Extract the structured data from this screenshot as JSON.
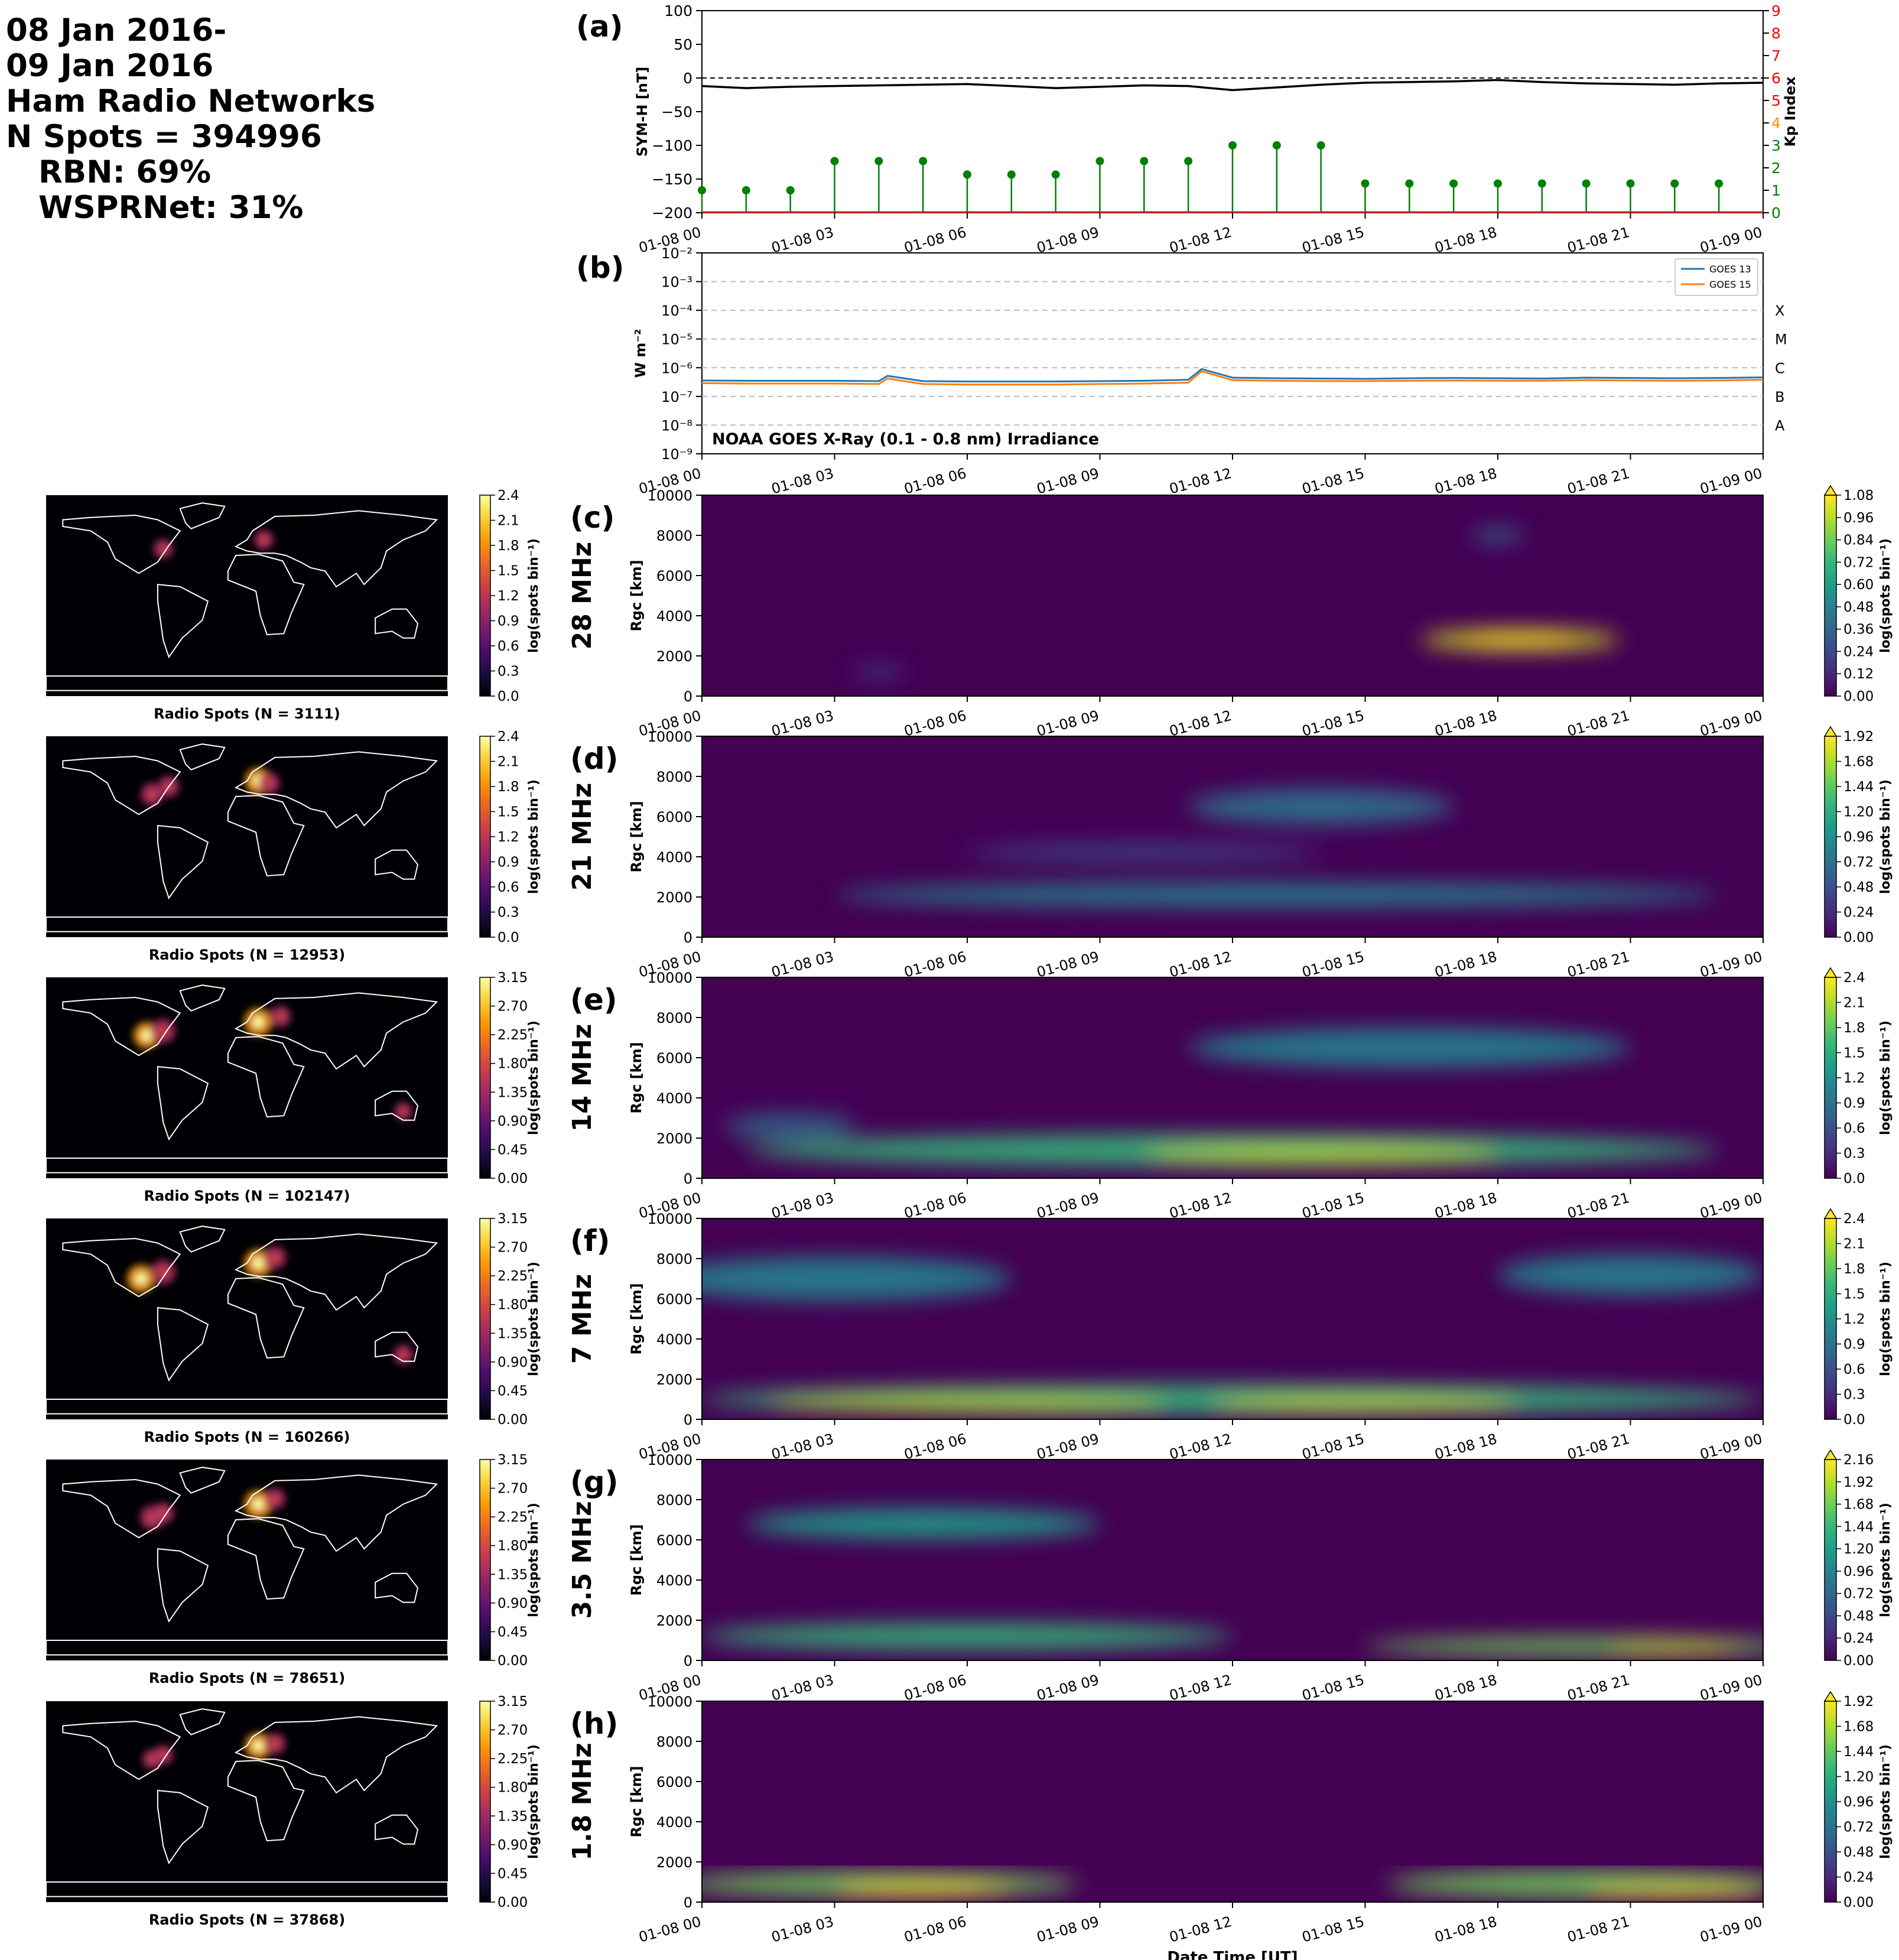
{
  "header": {
    "line1": "08 Jan 2016-",
    "line2": "09 Jan 2016",
    "line3": "Ham Radio Networks",
    "line4": "N Spots = 394996",
    "line5": "RBN: 69%",
    "line6": "WSPRNet: 31%"
  },
  "time_ticks": [
    "01-08 00",
    "01-08 03",
    "01-08 06",
    "01-08 09",
    "01-08 12",
    "01-08 15",
    "01-08 18",
    "01-08 21",
    "01-09 00"
  ],
  "xlabel": "Date Time [UT]",
  "colors": {
    "symh_line": "#000000",
    "kp_stem": "#008000",
    "kp_axis": "#ff0000",
    "goes13": "#1f77b4",
    "goes15": "#ff7f0e"
  },
  "chart_data": [
    {
      "panel": "(a)",
      "type": "line",
      "title": "",
      "ylabel": "SYM-H [nT]",
      "ylim": [
        -200,
        100
      ],
      "yticks": [
        "100",
        "50",
        "0",
        "−50",
        "−100",
        "−150",
        "−200"
      ],
      "reference_line": 0,
      "x_hours": [
        0,
        1,
        2,
        3,
        4,
        5,
        6,
        7,
        8,
        9,
        10,
        11,
        12,
        13,
        14,
        15,
        16,
        17,
        18,
        19,
        20,
        21,
        22,
        23,
        24
      ],
      "series": [
        {
          "values": [
            -12,
            -15,
            -13,
            -12,
            -11,
            -10,
            -9,
            -12,
            -15,
            -13,
            -11,
            -12,
            -18,
            -14,
            -10,
            -7,
            -6,
            -5,
            -3,
            -6,
            -8,
            -9,
            -10,
            -8,
            -7
          ]
        }
      ],
      "secondary": {
        "type": "stem",
        "ylabel": "Kp Index",
        "ylim": [
          0,
          9
        ],
        "yticks": [
          "0",
          "1",
          "2",
          "3",
          "4",
          "5",
          "6",
          "7",
          "8",
          "9"
        ],
        "x_hours": [
          0,
          1,
          2,
          3,
          4,
          5,
          6,
          7,
          8,
          9,
          10,
          11,
          12,
          13,
          14,
          15,
          16,
          17,
          18,
          19,
          20,
          21,
          22,
          23
        ],
        "values": [
          1.0,
          1.0,
          1.0,
          2.3,
          2.3,
          2.3,
          1.7,
          1.7,
          1.7,
          2.3,
          2.3,
          2.3,
          3.0,
          3.0,
          3.0,
          1.3,
          1.3,
          1.3,
          1.3,
          1.3,
          1.3,
          1.3,
          1.3,
          1.3
        ]
      }
    },
    {
      "panel": "(b)",
      "type": "line",
      "title": "NOAA GOES X-Ray (0.1 - 0.8 nm) Irradiance",
      "ylabel": "W m⁻²",
      "yscale": "log",
      "ylim": [
        1e-09,
        0.01
      ],
      "yticks": [
        "10⁻²",
        "10⁻³",
        "10⁻⁴",
        "10⁻⁵",
        "10⁻⁶",
        "10⁻⁷",
        "10⁻⁸",
        "10⁻⁹"
      ],
      "flare_classes": [
        "X",
        "M",
        "C",
        "B",
        "A"
      ],
      "legend": [
        "GOES 13",
        "GOES 15"
      ],
      "x_hours": [
        0,
        1,
        2,
        3,
        4,
        4.2,
        5,
        6,
        7,
        8,
        9,
        10,
        11,
        11.3,
        12,
        13,
        14,
        15,
        16,
        17,
        18,
        19,
        20,
        21,
        22,
        23,
        24
      ],
      "series": [
        {
          "name": "GOES 13",
          "values": [
            3.6e-07,
            3.5e-07,
            3.5e-07,
            3.5e-07,
            3.4e-07,
            5.2e-07,
            3.4e-07,
            3.3e-07,
            3.3e-07,
            3.3e-07,
            3.4e-07,
            3.5e-07,
            3.8e-07,
            9e-07,
            4.5e-07,
            4.3e-07,
            4.2e-07,
            4.1e-07,
            4.3e-07,
            4.4e-07,
            4.3e-07,
            4.2e-07,
            4.5e-07,
            4.4e-07,
            4.3e-07,
            4.4e-07,
            4.6e-07
          ]
        },
        {
          "name": "GOES 15",
          "values": [
            2.9e-07,
            2.8e-07,
            2.8e-07,
            2.8e-07,
            2.7e-07,
            4.2e-07,
            2.7e-07,
            2.6e-07,
            2.6e-07,
            2.6e-07,
            2.7e-07,
            2.8e-07,
            3e-07,
            7.5e-07,
            3.7e-07,
            3.5e-07,
            3.4e-07,
            3.4e-07,
            3.5e-07,
            3.6e-07,
            3.5e-07,
            3.5e-07,
            3.7e-07,
            3.6e-07,
            3.5e-07,
            3.6e-07,
            3.8e-07
          ]
        }
      ]
    },
    {
      "panel": "(c)",
      "type": "heatmap",
      "band": "28 MHz",
      "ylabel": "R_gc [km]",
      "ylim": [
        0,
        10000
      ],
      "yticks": [
        "10000",
        "8000",
        "6000",
        "4000",
        "2000",
        "0"
      ],
      "cbar_label": "log(spots bin⁻¹)",
      "cbar_ticks": [
        "1.08",
        "0.96",
        "0.84",
        "0.72",
        "0.60",
        "0.48",
        "0.36",
        "0.24",
        "0.12",
        "0.00"
      ],
      "cbar_max": 1.08,
      "map_title": "Radio Spots (N = 3111)",
      "map_cbar_ticks": [
        "2.4",
        "2.1",
        "1.8",
        "1.5",
        "1.2",
        "0.9",
        "0.6",
        "0.3",
        "0.0"
      ],
      "map_cbar_max": 2.4
    },
    {
      "panel": "(d)",
      "type": "heatmap",
      "band": "21 MHz",
      "ylabel": "R_gc [km]",
      "ylim": [
        0,
        10000
      ],
      "yticks": [
        "10000",
        "8000",
        "6000",
        "4000",
        "2000",
        "0"
      ],
      "cbar_label": "log(spots bin⁻¹)",
      "cbar_ticks": [
        "1.92",
        "1.68",
        "1.44",
        "1.20",
        "0.96",
        "0.72",
        "0.48",
        "0.24",
        "0.00"
      ],
      "cbar_max": 1.92,
      "map_title": "Radio Spots (N = 12953)",
      "map_cbar_ticks": [
        "2.4",
        "2.1",
        "1.8",
        "1.5",
        "1.2",
        "0.9",
        "0.6",
        "0.3",
        "0.0"
      ],
      "map_cbar_max": 2.4
    },
    {
      "panel": "(e)",
      "type": "heatmap",
      "band": "14 MHz",
      "ylabel": "R_gc [km]",
      "ylim": [
        0,
        10000
      ],
      "yticks": [
        "10000",
        "8000",
        "6000",
        "4000",
        "2000",
        "0"
      ],
      "cbar_label": "log(spots bin⁻¹)",
      "cbar_ticks": [
        "2.4",
        "2.1",
        "1.8",
        "1.5",
        "1.2",
        "0.9",
        "0.6",
        "0.3",
        "0.0"
      ],
      "cbar_max": 2.4,
      "map_title": "Radio Spots (N = 102147)",
      "map_cbar_ticks": [
        "3.15",
        "2.70",
        "2.25",
        "1.80",
        "1.35",
        "0.90",
        "0.45",
        "0.00"
      ],
      "map_cbar_max": 3.15
    },
    {
      "panel": "(f)",
      "type": "heatmap",
      "band": "7 MHz",
      "ylabel": "R_gc [km]",
      "ylim": [
        0,
        10000
      ],
      "yticks": [
        "10000",
        "8000",
        "6000",
        "4000",
        "2000",
        "0"
      ],
      "cbar_label": "log(spots bin⁻¹)",
      "cbar_ticks": [
        "2.4",
        "2.1",
        "1.8",
        "1.5",
        "1.2",
        "0.9",
        "0.6",
        "0.3",
        "0.0"
      ],
      "cbar_max": 2.4,
      "map_title": "Radio Spots (N = 160266)",
      "map_cbar_ticks": [
        "3.15",
        "2.70",
        "2.25",
        "1.80",
        "1.35",
        "0.90",
        "0.45",
        "0.00"
      ],
      "map_cbar_max": 3.15
    },
    {
      "panel": "(g)",
      "type": "heatmap",
      "band": "3.5 MHz",
      "ylabel": "R_gc [km]",
      "ylim": [
        0,
        10000
      ],
      "yticks": [
        "10000",
        "8000",
        "6000",
        "4000",
        "2000",
        "0"
      ],
      "cbar_label": "log(spots bin⁻¹)",
      "cbar_ticks": [
        "2.16",
        "1.92",
        "1.68",
        "1.44",
        "1.20",
        "0.96",
        "0.72",
        "0.48",
        "0.24",
        "0.00"
      ],
      "cbar_max": 2.16,
      "map_title": "Radio Spots (N = 78651)",
      "map_cbar_ticks": [
        "3.15",
        "2.70",
        "2.25",
        "1.80",
        "1.35",
        "0.90",
        "0.45",
        "0.00"
      ],
      "map_cbar_max": 3.15
    },
    {
      "panel": "(h)",
      "type": "heatmap",
      "band": "1.8 MHz",
      "ylabel": "R_gc [km]",
      "ylim": [
        0,
        10000
      ],
      "yticks": [
        "10000",
        "8000",
        "6000",
        "4000",
        "2000",
        "0"
      ],
      "cbar_label": "log(spots bin⁻¹)",
      "cbar_ticks": [
        "1.92",
        "1.68",
        "1.44",
        "1.20",
        "0.96",
        "0.72",
        "0.48",
        "0.24",
        "0.00"
      ],
      "cbar_max": 1.92,
      "map_title": "Radio Spots (N = 37868)",
      "map_cbar_ticks": [
        "3.15",
        "2.70",
        "2.25",
        "1.80",
        "1.35",
        "0.90",
        "0.45",
        "0.00"
      ],
      "map_cbar_max": 3.15
    }
  ]
}
